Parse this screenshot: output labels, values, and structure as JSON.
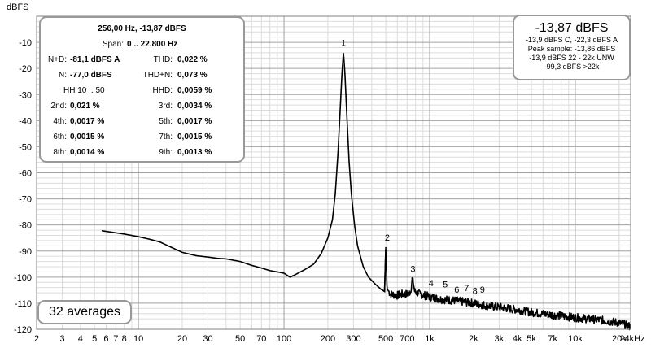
{
  "chart_data": {
    "type": "line",
    "ylabel": "dBFS",
    "x_scale": "log",
    "xlim": [
      2,
      24000
    ],
    "ylim": [
      -120,
      0
    ],
    "grid": true,
    "y_ticks": [
      -10,
      -20,
      -30,
      -40,
      -50,
      -60,
      -70,
      -80,
      -90,
      -100,
      -110,
      -120
    ],
    "y_tick_labels": [
      "-10",
      "-20",
      "-30",
      "-40",
      "-50",
      "-60",
      "-70",
      "-80",
      "-90",
      "-100",
      "-110",
      "-120"
    ],
    "x_ticks": [
      2,
      3,
      4,
      5,
      6,
      7,
      8,
      10,
      20,
      30,
      50,
      70,
      100,
      200,
      300,
      500,
      700,
      1000,
      2000,
      3000,
      4000,
      5000,
      7000,
      10000,
      20000,
      24000
    ],
    "x_tick_labels": [
      "2",
      "3",
      "4",
      "5",
      "6",
      "7",
      "8",
      "10",
      "20",
      "30",
      "50",
      "70",
      "100",
      "200",
      "300",
      "500",
      "700",
      "1k",
      "2k",
      "3k",
      "4k",
      "5k",
      "7k",
      "10k",
      "20k",
      "24kHz"
    ],
    "series": [
      {
        "x": [
          5.6,
          8,
          10,
          12,
          14,
          16,
          20,
          25,
          30,
          35,
          40,
          50,
          60,
          70,
          80,
          90,
          100,
          110,
          120,
          140,
          160,
          180,
          200,
          215,
          225,
          235,
          243,
          250,
          256,
          262,
          270,
          280,
          290,
          305,
          320,
          350,
          380,
          420,
          460,
          490,
          500,
          510,
          540,
          600,
          650,
          700,
          740,
          760,
          790,
          850,
          1000,
          1200,
          1500,
          2000,
          2500,
          3000,
          4000,
          5000,
          7000,
          10000,
          15000,
          20000,
          24000
        ],
        "y": [
          -82.2,
          -83.5,
          -84.5,
          -85.5,
          -86.5,
          -88,
          -90.5,
          -91.8,
          -92.3,
          -92.8,
          -93,
          -94,
          -95.5,
          -96.5,
          -97.5,
          -98,
          -98.5,
          -100,
          -99,
          -97,
          -95,
          -91,
          -85,
          -78,
          -68,
          -52,
          -36,
          -22,
          -13.87,
          -22,
          -38,
          -56,
          -68,
          -80,
          -88,
          -96,
          -100,
          -102.5,
          -104.5,
          -105.5,
          -88.5,
          -104.5,
          -106.5,
          -107,
          -106.5,
          -106.5,
          -105.5,
          -100.5,
          -105.5,
          -106.5,
          -107.5,
          -108.5,
          -109,
          -110,
          -111,
          -111.5,
          -112.5,
          -113.5,
          -114.5,
          -115.5,
          -116.5,
          -117.5,
          -119
        ]
      }
    ],
    "annotations": [
      {
        "text": "1",
        "x": 256,
        "y": -13.87
      },
      {
        "text": "2",
        "x": 512,
        "y": -88.5
      },
      {
        "text": "3",
        "x": 768,
        "y": -100.5
      },
      {
        "text": "4",
        "x": 1024,
        "y": -106
      },
      {
        "text": "5",
        "x": 1280,
        "y": -106.5
      },
      {
        "text": "6",
        "x": 1536,
        "y": -108.5
      },
      {
        "text": "7",
        "x": 1792,
        "y": -107.8
      },
      {
        "text": "8",
        "x": 2048,
        "y": -109
      },
      {
        "text": "9",
        "x": 2304,
        "y": -108.4
      }
    ]
  },
  "info_panel": {
    "header": "256,00 Hz, -13,87 dBFS",
    "span_label": "Span:",
    "span_value": "0 .. 22.800 Hz",
    "nd_label": "N+D:",
    "nd_value": "-81,1 dBFS A",
    "thd_label": "THD:",
    "thd_value": "0,022 %",
    "n_label": "N:",
    "n_value": "-77,0 dBFS",
    "thdn_label": "THD+N:",
    "thdn_value": "0,073 %",
    "hh_label": "HH 10 .. 50",
    "hhd_label": "HHD:",
    "hhd_value": "0,0059 %",
    "h2_label": "2nd:",
    "h2_value": "0,021 %",
    "h3_label": "3rd:",
    "h3_value": "0,0034 %",
    "h4_label": "4th:",
    "h4_value": "0,0017 %",
    "h5_label": "5th:",
    "h5_value": "0,0017 %",
    "h6_label": "6th:",
    "h6_value": "0,0015 %",
    "h7_label": "7th:",
    "h7_value": "0,0015 %",
    "h8_label": "8th:",
    "h8_value": "0,0014 %",
    "h9_label": "9th:",
    "h9_value": "0,0013 %"
  },
  "level_panel": {
    "main": "-13,87 dBFS",
    "lines": [
      "-13,9 dBFS C, -22,3 dBFS A",
      "Peak sample: -13,86 dBFS",
      "-13,9 dBFS 22 - 22k UNW",
      "-99,3 dBFS >22k"
    ]
  },
  "averages_label": "32 averages",
  "colors": {
    "grid_minor": "#dcdcdc",
    "grid_major": "#a0a0a0",
    "trace": "#000000",
    "panel_border": "#999999"
  }
}
